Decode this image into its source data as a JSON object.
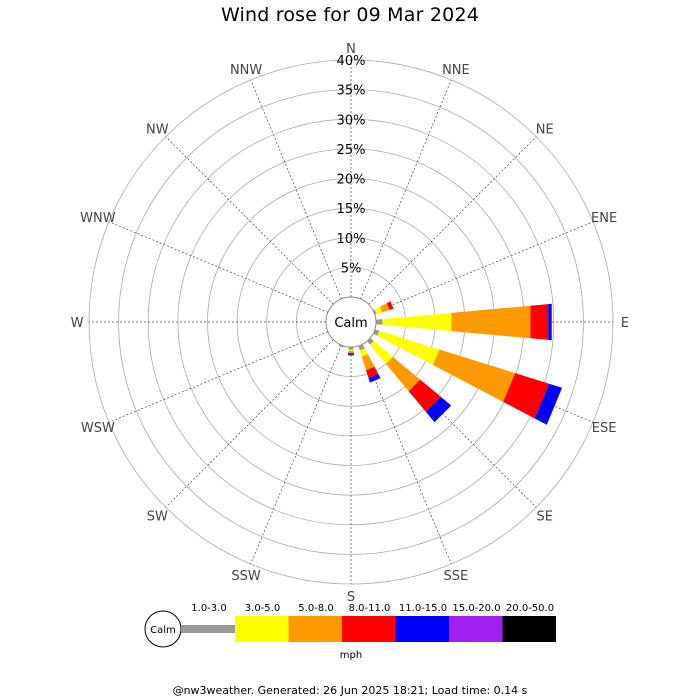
{
  "title": "Wind rose for 09 Mar 2024",
  "footer": "@nw3weather. Generated: 26 Jun 2025 18:21; Load time: 0.14 s",
  "chart_data": {
    "type": "wind-rose",
    "title": "Wind rose for 09 Mar 2024",
    "calm_label": "Calm",
    "radial_max": 40,
    "radial_ticks": [
      5,
      10,
      15,
      20,
      25,
      30,
      35,
      40
    ],
    "radial_tick_labels": [
      "5%",
      "10%",
      "15%",
      "20%",
      "25%",
      "30%",
      "35%",
      "40%"
    ],
    "directions": [
      "N",
      "NNE",
      "NE",
      "ENE",
      "E",
      "ESE",
      "SE",
      "SSE",
      "S",
      "SSW",
      "SW",
      "WSW",
      "W",
      "WNW",
      "NW",
      "NNW"
    ],
    "direction_angles": [
      0,
      22.5,
      45,
      67.5,
      90,
      112.5,
      135,
      157.5,
      180,
      202.5,
      225,
      247.5,
      270,
      292.5,
      315,
      337.5
    ],
    "speed_bins": [
      "calm-3",
      "1.0-3.0",
      "3.0-5.0",
      "5.0-8.0",
      "8.0-11.0",
      "11.0-15.0",
      "15.0-20.0",
      "20.0-50.0"
    ],
    "speed_bin_colors": [
      "#999999",
      "#ffff00",
      "#ff9900",
      "#ff0000",
      "#0000ff",
      "#a020f0",
      "#000000"
    ],
    "units": "mph",
    "series": [
      {
        "direction": "ENE",
        "angle": 67.5,
        "values": [
          0.3,
          1.0,
          1.3,
          0.7,
          0.0
        ]
      },
      {
        "direction": "E",
        "angle": 90,
        "values": [
          1.1,
          11.7,
          13.4,
          3.0,
          0.6
        ]
      },
      {
        "direction": "ESE",
        "angle": 112.5,
        "values": [
          0.8,
          10.6,
          13.4,
          6.0,
          2.3
        ]
      },
      {
        "direction": "SE",
        "angle": 135,
        "values": [
          0.8,
          4.2,
          6.0,
          4.5,
          2.3
        ]
      },
      {
        "direction": "SSE",
        "angle": 157.5,
        "values": [
          0.8,
          1.1,
          2.4,
          1.4,
          0.8
        ]
      },
      {
        "direction": "S",
        "angle": 180,
        "values": [
          0.5,
          0.2,
          0.3,
          0.2,
          0.2
        ]
      },
      {
        "direction": "SSW",
        "angle": 202.5,
        "values": [
          0.3,
          0.0,
          0.0,
          0.0,
          0.0
        ]
      }
    ]
  }
}
